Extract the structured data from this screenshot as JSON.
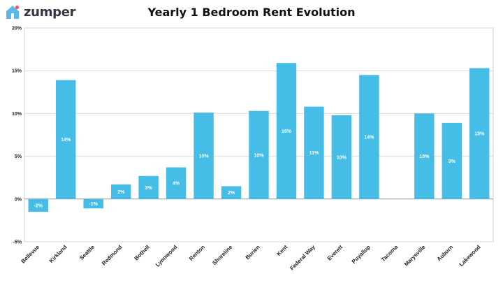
{
  "brand": {
    "name": "zumper",
    "icon": "house-icon",
    "icon_color": "#5bb8e6",
    "dot_color": "#ff4f5e"
  },
  "chart_data": {
    "type": "bar",
    "title": "Yearly 1 Bedroom Rent Evolution",
    "xlabel": "",
    "ylabel": "",
    "ylim": [
      -5,
      20
    ],
    "yticks": [
      -5,
      0,
      5,
      10,
      15,
      20
    ],
    "ytick_labels": [
      "-5%",
      "0%",
      "5%",
      "10%",
      "15%",
      "20%"
    ],
    "grid": true,
    "bar_color": "#45bde6",
    "categories": [
      "Bellevue",
      "Kirkland",
      "Seattle",
      "Redmond",
      "Bothell",
      "Lynnwood",
      "Renton",
      "Shoreline",
      "Burien",
      "Kent",
      "Federal Way",
      "Everett",
      "Puyallup",
      "Tacoma",
      "Marysville",
      "Auburn",
      "Lakewood"
    ],
    "values": [
      -1.5,
      13.9,
      -1.1,
      1.7,
      2.7,
      3.7,
      10.1,
      1.5,
      10.3,
      15.9,
      10.8,
      9.8,
      14.5,
      0,
      10.0,
      8.9,
      15.3
    ],
    "data_labels": [
      "-2%",
      "14%",
      "-1%",
      "2%",
      "3%",
      "4%",
      "10%",
      "2%",
      "10%",
      "16%",
      "11%",
      "10%",
      "14%",
      "",
      "10%",
      "9%",
      "15%"
    ]
  }
}
